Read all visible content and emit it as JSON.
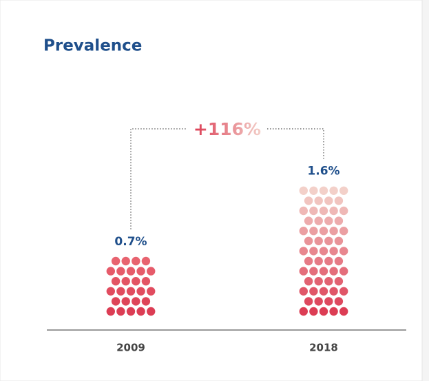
{
  "chart_data": {
    "type": "pictogram",
    "title": "Prevalence",
    "categories": [
      "2009",
      "2018"
    ],
    "values": [
      0.7,
      1.6
    ],
    "value_labels": [
      "0.7%",
      "1.6%"
    ],
    "colors": [
      {
        "top": "#e8636f",
        "bottom": "#dc3d54"
      },
      {
        "top": "#f3d0c9",
        "bottom": "#dc3d54"
      }
    ],
    "annotation": "+116%"
  }
}
